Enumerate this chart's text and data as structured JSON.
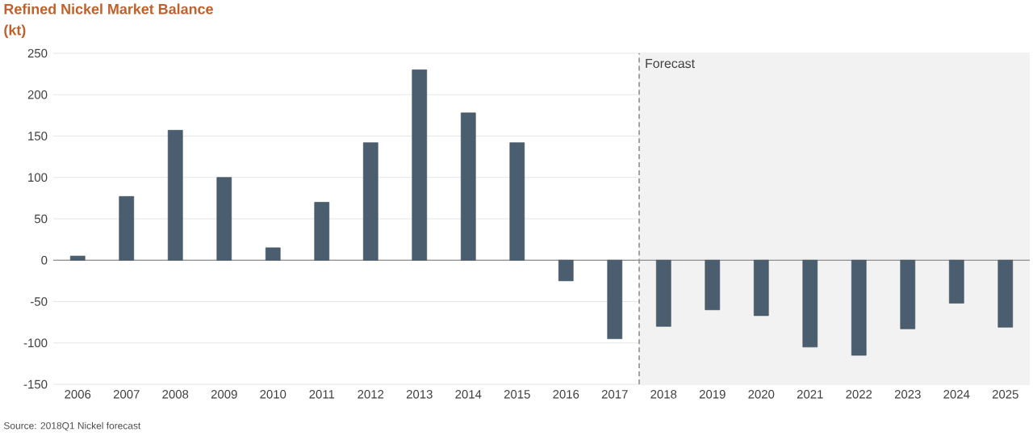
{
  "chart_data": {
    "type": "bar",
    "title": "Refined Nickel Market Balance",
    "ylabel": "(kt)",
    "categories": [
      "2006",
      "2007",
      "2008",
      "2009",
      "2010",
      "2011",
      "2012",
      "2013",
      "2014",
      "2015",
      "2016",
      "2017",
      "2018",
      "2019",
      "2020",
      "2021",
      "2022",
      "2023",
      "2024",
      "2025"
    ],
    "values": [
      5,
      77,
      157,
      100,
      15,
      70,
      142,
      230,
      178,
      142,
      -25,
      -95,
      -80,
      -60,
      -67,
      -105,
      -115,
      -83,
      -52,
      -81
    ],
    "color": "#4a5e6f",
    "ylim": [
      -150,
      250
    ],
    "yticks": [
      -150,
      -100,
      -50,
      0,
      50,
      100,
      150,
      200,
      250
    ],
    "grid": "y",
    "bands": [
      {
        "axis": "x",
        "from": "2018",
        "to": "2025",
        "label": "Forecast",
        "color": "#f2f2f2"
      }
    ],
    "ref_lines": [
      {
        "axis": "x",
        "value": "2018",
        "line_style": "dashed",
        "color": "#999999"
      }
    ],
    "annotations": [
      "Source: 2018Q1 Nickel forecast"
    ]
  }
}
